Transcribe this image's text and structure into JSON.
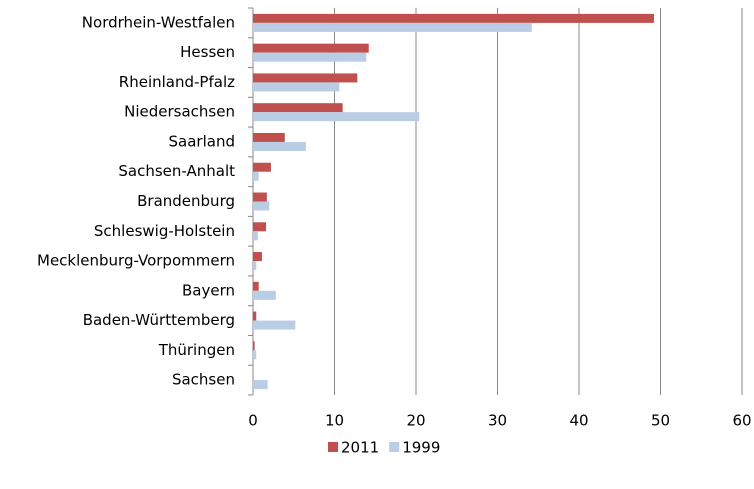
{
  "chart_data": {
    "type": "hbar",
    "categories": [
      "Nordrhein-Westfalen",
      "Hessen",
      "Rheinland-Pfalz",
      "Niedersachsen",
      "Saarland",
      "Sachsen-Anhalt",
      "Brandenburg",
      "Schleswig-Holstein",
      "Mecklenburg-Vorpommern",
      "Bayern",
      "Baden-Württemberg",
      "Thüringen",
      "Sachsen"
    ],
    "series": [
      {
        "name": "2011",
        "color": "#c0504d",
        "values": [
          49.2,
          14.2,
          12.8,
          11.0,
          3.9,
          2.2,
          1.7,
          1.6,
          1.1,
          0.7,
          0.4,
          0.2,
          0
        ]
      },
      {
        "name": "1999",
        "color": "#b9cde5",
        "values": [
          34.2,
          13.9,
          10.6,
          20.4,
          6.5,
          0.7,
          2.0,
          0.6,
          0.4,
          2.8,
          5.2,
          0.4,
          1.8
        ]
      }
    ],
    "xlim": [
      0,
      60
    ],
    "xticks": [
      0,
      10,
      20,
      30,
      40,
      50,
      60
    ],
    "grid": true,
    "legend": "bottom"
  }
}
